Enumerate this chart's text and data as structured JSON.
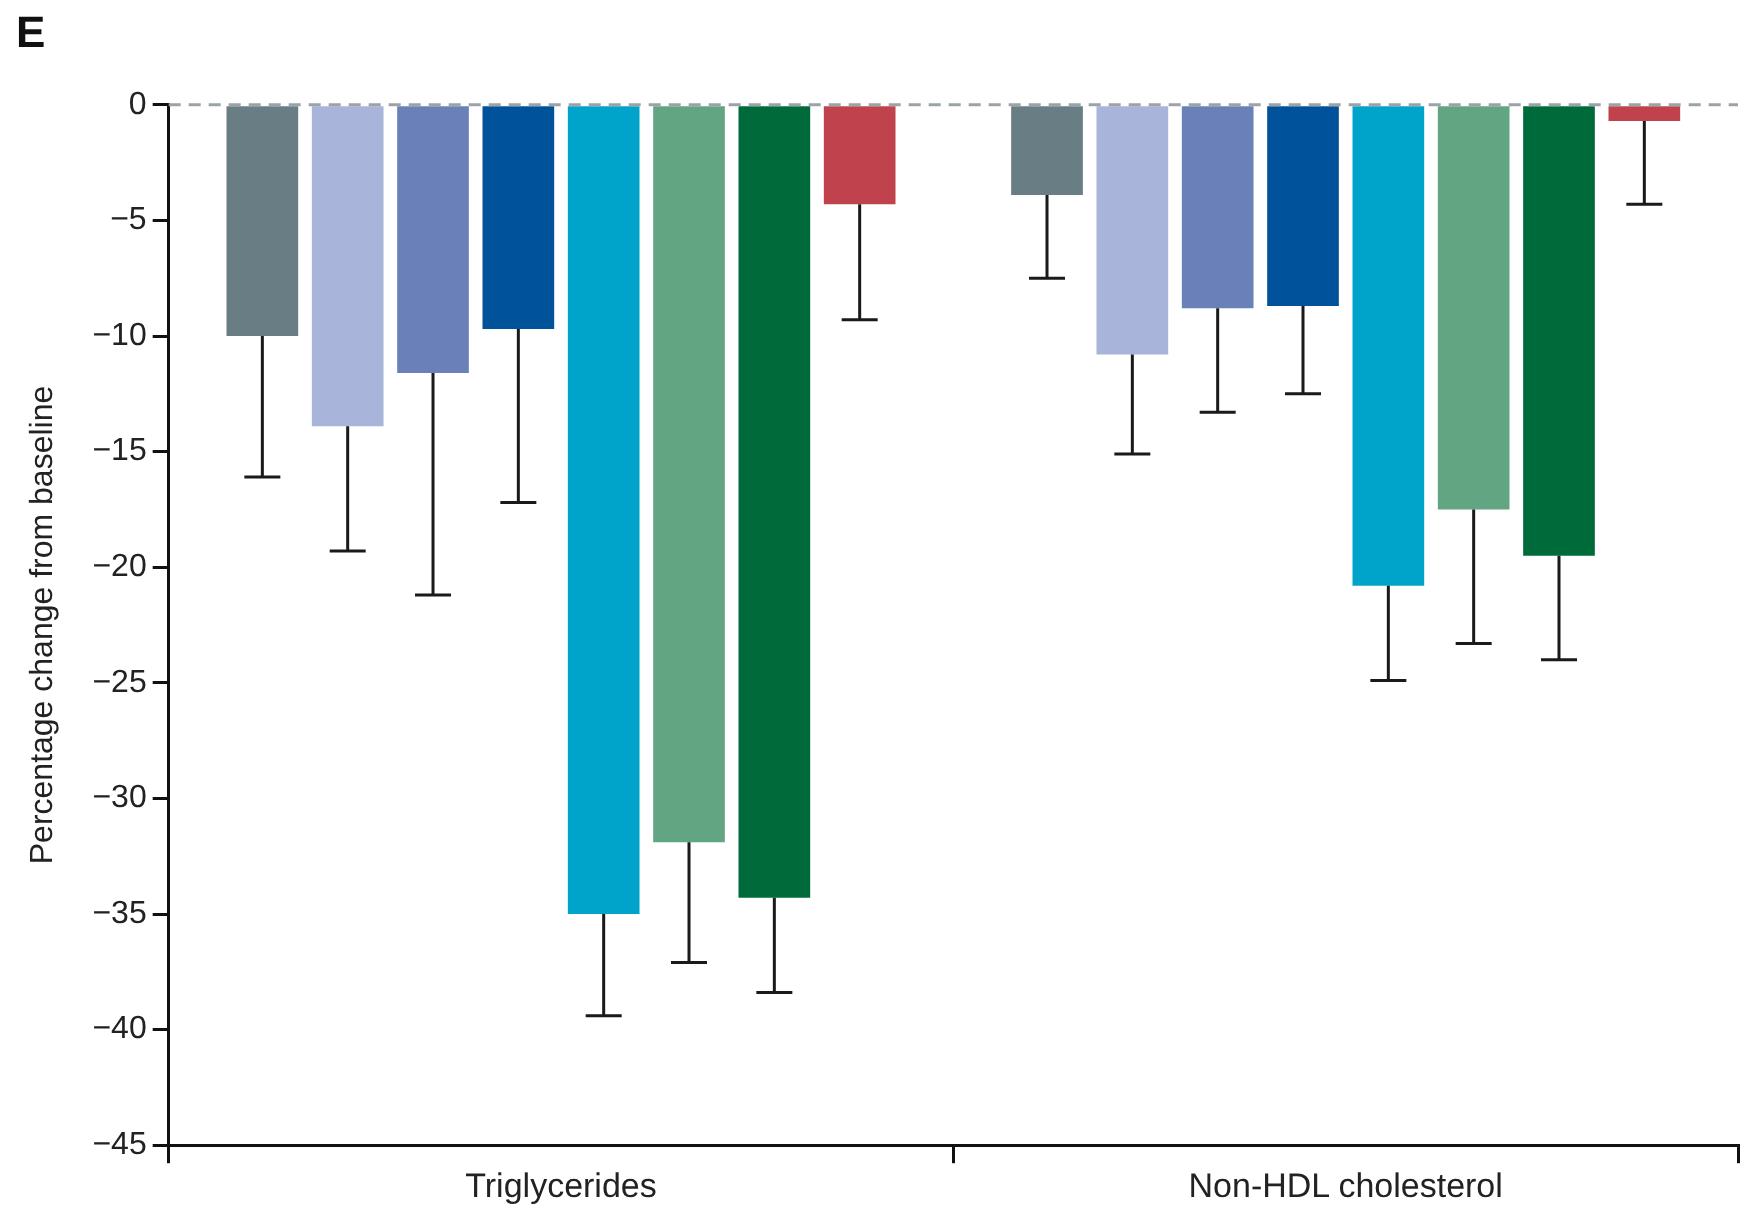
{
  "chart_data": {
    "type": "bar",
    "title": "E",
    "ylabel": "Percentage change from baseline",
    "categories": [
      "Triglycerides",
      "Non-HDL cholesterol"
    ],
    "series": [
      {
        "color": "#687d84",
        "values": [
          -10.0,
          -3.9
        ],
        "errors": [
          [
            -16.1,
            -10.0
          ],
          [
            -7.5,
            -3.9
          ]
        ]
      },
      {
        "color": "#a8b4da",
        "values": [
          -13.9,
          -10.8
        ],
        "errors": [
          [
            -19.3,
            -13.9
          ],
          [
            -15.1,
            -10.8
          ]
        ]
      },
      {
        "color": "#6a80b8",
        "values": [
          -11.6,
          -8.8
        ],
        "errors": [
          [
            -21.2,
            -11.6
          ],
          [
            -13.3,
            -8.8
          ]
        ]
      },
      {
        "color": "#00529b",
        "values": [
          -9.7,
          -8.7
        ],
        "errors": [
          [
            -17.2,
            -9.7
          ],
          [
            -12.5,
            -8.7
          ]
        ]
      },
      {
        "color": "#00a3c9",
        "values": [
          -35.0,
          -20.8
        ],
        "errors": [
          [
            -39.4,
            -35.0
          ],
          [
            -24.9,
            -20.8
          ]
        ]
      },
      {
        "color": "#62a583",
        "values": [
          -31.9,
          -17.5
        ],
        "errors": [
          [
            -37.1,
            -31.9
          ],
          [
            -23.3,
            -17.5
          ]
        ]
      },
      {
        "color": "#006b3a",
        "values": [
          -34.3,
          -19.5
        ],
        "errors": [
          [
            -38.4,
            -34.3
          ],
          [
            -24.0,
            -19.5
          ]
        ]
      },
      {
        "color": "#c0424c",
        "values": [
          -4.3,
          -0.7
        ],
        "errors": [
          [
            -9.3,
            -4.3
          ],
          [
            -4.3,
            -0.7
          ]
        ]
      }
    ],
    "ylim": [
      -45,
      0
    ],
    "yticks": [
      -45,
      -40,
      -35,
      -30,
      -25,
      -20,
      -15,
      -10,
      -5,
      0
    ],
    "ref_lines": [
      {
        "axis": "y",
        "value": 0,
        "color": "#9aa3a8",
        "line_style": "dashed"
      }
    ],
    "grid": false,
    "legend": false
  }
}
